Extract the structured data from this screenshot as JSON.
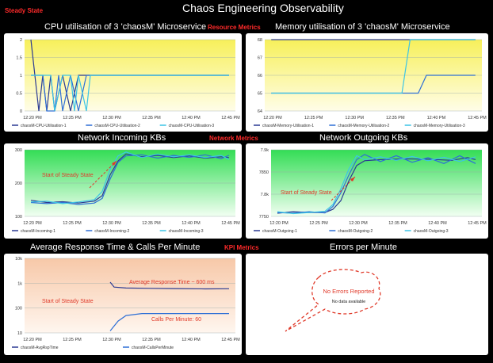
{
  "header": {
    "title": "Chaos Engineering Observability",
    "phase_label": "Steady State"
  },
  "sections": {
    "resource": "Resource Metrics",
    "network": "Network Metrics",
    "kpi": "KPI Metrics"
  },
  "panels": {
    "cpu": {
      "title": "CPU utilisation of  3 'chaosM' Microservice"
    },
    "memory": {
      "title": "Memory utilisation of 3 'chaosM' Microservice"
    },
    "net_in": {
      "title": "Network Incoming KBs",
      "annotation": "Start of Steady State"
    },
    "net_out": {
      "title": "Network Outgoing KBs",
      "annotation": "Start of Steady State"
    },
    "kpi": {
      "title": "Average Response Time & Calls Per Minute",
      "annotation": "Start of Steady State",
      "note_response": "Average Response Time ~ 600 ms",
      "note_calls": "Calls Per Minute: 60"
    },
    "errors": {
      "title": "Errors per Minute",
      "callout_title": "No Errors Reported",
      "callout_sub": "No data available"
    }
  },
  "colors": {
    "series1": "#2b3a93",
    "series2": "#2e6fd6",
    "series3": "#3cc4e6",
    "annotation": "#e03a2a",
    "yellow_top": "#f7f05a",
    "green_top": "#33dd55",
    "orange_top": "#f7c8a8"
  },
  "chart_data": [
    {
      "id": "cpu",
      "type": "line",
      "x_ticks": [
        "12:20 PM",
        "12:25 PM",
        "12:30 PM",
        "12:35 PM",
        "12:40 PM",
        "12:45 PM"
      ],
      "y_ticks": [
        "0",
        "0.5",
        "1",
        "1.5",
        "2"
      ],
      "ylim": [
        0,
        2
      ],
      "series": [
        {
          "name": "chaosM-CPU-Utilisation-1",
          "points": [
            [
              0,
              2
            ],
            [
              0.5,
              1
            ],
            [
              1,
              0
            ],
            [
              1.5,
              1
            ],
            [
              2,
              0
            ],
            [
              2.5,
              1
            ],
            [
              3,
              0
            ],
            [
              4,
              1
            ],
            [
              5,
              0
            ],
            [
              6,
              1
            ],
            [
              25,
              1
            ]
          ]
        },
        {
          "name": "chaosM-CPU-Utilisation-2",
          "points": [
            [
              0,
              1
            ],
            [
              1.5,
              1
            ],
            [
              2,
              0
            ],
            [
              3,
              0
            ],
            [
              3.5,
              1
            ],
            [
              4,
              0
            ],
            [
              5,
              1
            ],
            [
              6,
              0
            ],
            [
              7,
              1
            ],
            [
              25,
              1
            ]
          ]
        },
        {
          "name": "chaosM-CPU-Utilisation-3",
          "points": [
            [
              0,
              1
            ],
            [
              2.5,
              1
            ],
            [
              3,
              0
            ],
            [
              4,
              1
            ],
            [
              5,
              1
            ],
            [
              5.5,
              0
            ],
            [
              6,
              1
            ],
            [
              7,
              0
            ],
            [
              7.5,
              1
            ],
            [
              25,
              1
            ]
          ]
        }
      ]
    },
    {
      "id": "memory",
      "type": "line",
      "x_ticks": [
        "12:20 PM",
        "12:25 PM",
        "12:30 PM",
        "12:35 PM",
        "12:40 PM",
        "12:45 PM"
      ],
      "y_ticks": [
        "64",
        "65",
        "66",
        "67",
        "68"
      ],
      "ylim": [
        64,
        68
      ],
      "series": [
        {
          "name": "chaosM-Memory-Utilisation-1",
          "points": [
            [
              0,
              68
            ],
            [
              25,
              68
            ]
          ]
        },
        {
          "name": "chaosM-Memory-Utilisation-2",
          "points": [
            [
              0,
              65
            ],
            [
              18,
              65
            ],
            [
              19,
              66
            ],
            [
              25,
              66
            ]
          ]
        },
        {
          "name": "chaosM-Memory-Utilisation-3",
          "points": [
            [
              0,
              65
            ],
            [
              16,
              65
            ],
            [
              17,
              68
            ],
            [
              25,
              68
            ]
          ]
        }
      ]
    },
    {
      "id": "net_in",
      "type": "line",
      "x_ticks": [
        "12:20 PM",
        "12:25 PM",
        "12:30 PM",
        "12:35 PM",
        "12:40 PM",
        "12:45 PM"
      ],
      "y_ticks": [
        "100",
        "200",
        "300"
      ],
      "ylim": [
        100,
        340
      ],
      "series": [
        {
          "name": "chaosM-Incoming-1",
          "points": [
            [
              0,
              158
            ],
            [
              2,
              150
            ],
            [
              4,
              153
            ],
            [
              6,
              148
            ],
            [
              8,
              155
            ],
            [
              9,
              175
            ],
            [
              10,
              250
            ],
            [
              11,
              300
            ],
            [
              12,
              325
            ],
            [
              14,
              315
            ],
            [
              16,
              320
            ],
            [
              18,
              312
            ],
            [
              20,
              318
            ],
            [
              22,
              310
            ],
            [
              24,
              315
            ],
            [
              25,
              312
            ]
          ]
        },
        {
          "name": "chaosM-Incoming-2",
          "points": [
            [
              0,
              150
            ],
            [
              2,
              146
            ],
            [
              4,
              150
            ],
            [
              6,
              143
            ],
            [
              8,
              148
            ],
            [
              9,
              165
            ],
            [
              10,
              235
            ],
            [
              11,
              295
            ],
            [
              12,
              318
            ],
            [
              14,
              322
            ],
            [
              16,
              310
            ],
            [
              18,
              320
            ],
            [
              20,
              313
            ],
            [
              22,
              322
            ],
            [
              24,
              308
            ],
            [
              25,
              320
            ]
          ]
        },
        {
          "name": "chaosM-Incoming-3",
          "points": [
            [
              0,
              152
            ],
            [
              2,
              155
            ],
            [
              4,
              146
            ],
            [
              6,
              152
            ],
            [
              8,
              160
            ],
            [
              9,
              190
            ],
            [
              10,
              270
            ],
            [
              11,
              318
            ],
            [
              12,
              332
            ],
            [
              14,
              312
            ],
            [
              16,
              325
            ],
            [
              18,
              315
            ],
            [
              20,
              322
            ],
            [
              22,
              312
            ],
            [
              24,
              320
            ],
            [
              25,
              305
            ]
          ]
        }
      ]
    },
    {
      "id": "net_out",
      "type": "line",
      "x_ticks": [
        "12:20 PM",
        "12:25 PM",
        "12:30 PM",
        "12:35 PM",
        "12:40 PM",
        "12:45 PM"
      ],
      "y_ticks": [
        "7750",
        "7.8k",
        "7850",
        "7.9k"
      ],
      "ylim": [
        7750,
        7920
      ],
      "series": [
        {
          "name": "chaosM-Outgoing-1",
          "points": [
            [
              0,
              7758
            ],
            [
              2,
              7762
            ],
            [
              4,
              7760
            ],
            [
              6,
              7760
            ],
            [
              7,
              7768
            ],
            [
              8,
              7790
            ],
            [
              9,
              7840
            ],
            [
              10,
              7880
            ],
            [
              11,
              7892
            ],
            [
              13,
              7895
            ],
            [
              16,
              7897
            ],
            [
              19,
              7896
            ],
            [
              22,
              7893
            ],
            [
              24,
              7900
            ],
            [
              25,
              7895
            ]
          ]
        },
        {
          "name": "chaosM-Outgoing-2",
          "points": [
            [
              0,
              7760
            ],
            [
              2,
              7758
            ],
            [
              4,
              7762
            ],
            [
              6,
              7759
            ],
            [
              7,
              7775
            ],
            [
              8,
              7810
            ],
            [
              9,
              7855
            ],
            [
              10,
              7895
            ],
            [
              11,
              7908
            ],
            [
              13,
              7890
            ],
            [
              15,
              7905
            ],
            [
              17,
              7888
            ],
            [
              19,
              7900
            ],
            [
              21,
              7885
            ],
            [
              23,
              7905
            ],
            [
              25,
              7885
            ]
          ]
        },
        {
          "name": "chaosM-Outgoing-3",
          "points": [
            [
              0,
              7762
            ],
            [
              2,
              7757
            ],
            [
              4,
              7760
            ],
            [
              6,
              7763
            ],
            [
              7,
              7780
            ],
            [
              8,
              7820
            ],
            [
              9,
              7870
            ],
            [
              10,
              7905
            ],
            [
              11,
              7895
            ],
            [
              13,
              7902
            ],
            [
              15,
              7893
            ],
            [
              17,
              7903
            ],
            [
              19,
              7892
            ],
            [
              21,
              7901
            ],
            [
              23,
              7890
            ],
            [
              25,
              7902
            ]
          ]
        }
      ]
    },
    {
      "id": "kpi",
      "type": "line",
      "log_scale": true,
      "x_ticks": [
        "12:20 PM",
        "12:25 PM",
        "12:30 PM",
        "12:35 PM",
        "12:40 PM",
        "12:45 PM"
      ],
      "y_ticks": [
        "10",
        "100",
        "1k",
        "10k"
      ],
      "ylim": [
        10,
        10000
      ],
      "series": [
        {
          "name": "chaosM-AvgRspTime",
          "points": [
            [
              10,
              1100
            ],
            [
              10.5,
              700
            ],
            [
              12,
              640
            ],
            [
              15,
              620
            ],
            [
              18,
              610
            ],
            [
              22,
              590
            ],
            [
              25,
              600
            ]
          ]
        },
        {
          "name": "chaosM-CallsPerMinute",
          "points": [
            [
              10,
              12
            ],
            [
              11,
              30
            ],
            [
              12,
              50
            ],
            [
              14,
              60
            ],
            [
              25,
              60
            ]
          ]
        }
      ]
    }
  ]
}
